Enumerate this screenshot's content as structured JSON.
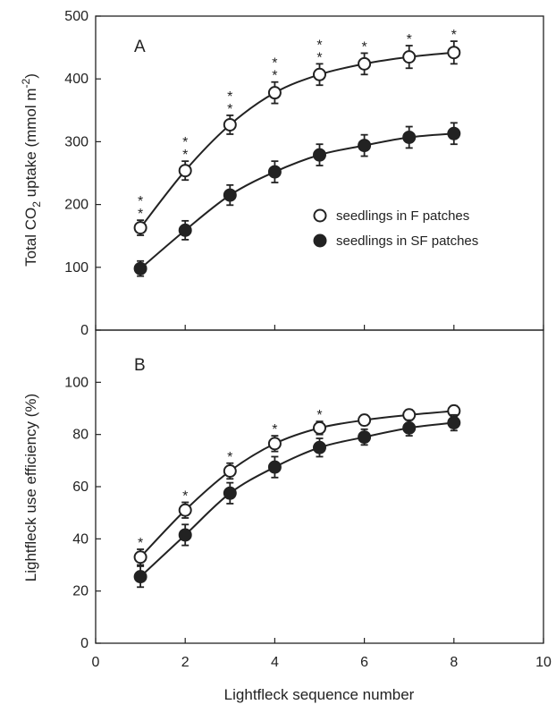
{
  "chart_data": [
    {
      "type": "line",
      "panel": "A",
      "ylabel_main": "Total CO",
      "ylabel_sub": "2",
      "ylabel_tail": " uptake (mmol m",
      "ylabel_sup": "-2",
      "ylabel_close": ")",
      "xlabel": "",
      "xlim": [
        0,
        10
      ],
      "ylim": [
        0,
        500
      ],
      "yticks": [
        0,
        100,
        200,
        300,
        400,
        500
      ],
      "xticks": [
        0,
        2,
        4,
        6,
        8,
        10
      ],
      "show_x_ticklabels": false,
      "legend_position": "center-right",
      "series": [
        {
          "name": "seedlings in F patches",
          "marker": "open",
          "x": [
            1,
            2,
            3,
            4,
            5,
            6,
            7,
            8
          ],
          "y": [
            163,
            254,
            327,
            378,
            407,
            424,
            435,
            442
          ],
          "err": [
            12,
            15,
            15,
            17,
            17,
            17,
            18,
            18
          ]
        },
        {
          "name": "seedlings in SF patches",
          "marker": "filled",
          "x": [
            1,
            2,
            3,
            4,
            5,
            6,
            7,
            8
          ],
          "y": [
            98,
            159,
            215,
            252,
            279,
            294,
            307,
            313
          ],
          "err": [
            12,
            15,
            16,
            17,
            17,
            17,
            17,
            17
          ]
        }
      ],
      "significance": [
        {
          "x": 1,
          "stars": 2
        },
        {
          "x": 2,
          "stars": 2
        },
        {
          "x": 3,
          "stars": 2
        },
        {
          "x": 4,
          "stars": 2
        },
        {
          "x": 5,
          "stars": 2
        },
        {
          "x": 6,
          "stars": 1
        },
        {
          "x": 7,
          "stars": 1
        },
        {
          "x": 8,
          "stars": 1
        }
      ]
    },
    {
      "type": "line",
      "panel": "B",
      "ylabel": "Lightfleck use efficiency (%)",
      "xlabel": "Lightfleck sequence number",
      "xlim": [
        0,
        10
      ],
      "ylim": [
        0,
        120
      ],
      "yticks": [
        0,
        20,
        40,
        60,
        80,
        100
      ],
      "xticks": [
        0,
        2,
        4,
        6,
        8,
        10
      ],
      "show_x_ticklabels": true,
      "series": [
        {
          "name": "seedlings in F patches",
          "marker": "open",
          "x": [
            1,
            2,
            3,
            4,
            5,
            6,
            7,
            8
          ],
          "y": [
            33,
            51,
            66,
            76.5,
            82.5,
            85.5,
            87.5,
            89
          ],
          "err": [
            3,
            3,
            3,
            3,
            2.5,
            2,
            2,
            2
          ]
        },
        {
          "name": "seedlings in SF patches",
          "marker": "filled",
          "x": [
            1,
            2,
            3,
            4,
            5,
            6,
            7,
            8
          ],
          "y": [
            25.5,
            41.5,
            57.5,
            67.5,
            75,
            79,
            82.5,
            84.5
          ],
          "err": [
            4,
            4,
            4,
            4,
            3.5,
            3,
            3,
            3
          ]
        }
      ],
      "significance": [
        {
          "x": 1,
          "stars": 1
        },
        {
          "x": 2,
          "stars": 1
        },
        {
          "x": 3,
          "stars": 1
        },
        {
          "x": 4,
          "stars": 1
        },
        {
          "x": 5,
          "stars": 1
        }
      ]
    }
  ],
  "colors": {
    "ink": "#222222",
    "open_fill": "#ffffff",
    "filled_fill": "#222222"
  }
}
